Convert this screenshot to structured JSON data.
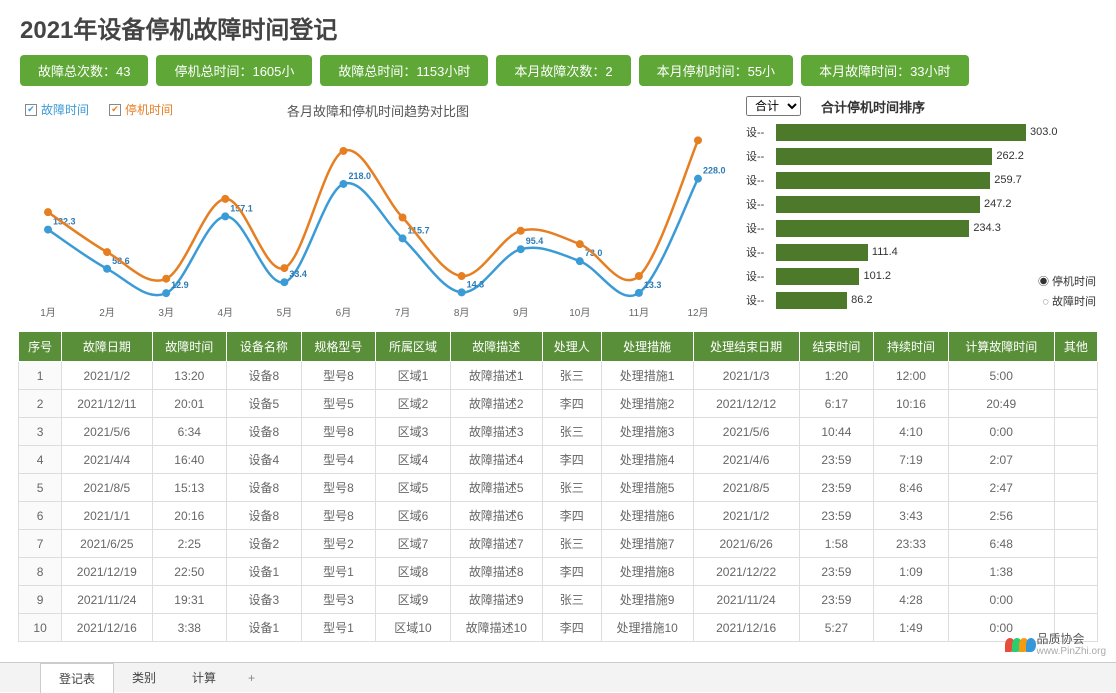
{
  "title": "2021年设备停机故障时间登记",
  "pills": [
    {
      "label": "故障总次数：43"
    },
    {
      "label": "停机总时间：1605小"
    },
    {
      "label": "故障总时间：1153小时"
    },
    {
      "label": "本月故障次数：2"
    },
    {
      "label": "本月停机时间：55小"
    },
    {
      "label": "本月故障时间：33小时"
    }
  ],
  "chart": {
    "title": "各月故障和停机时间趋势对比图",
    "legend": [
      {
        "label": "故障时间",
        "color": "#3b9bd6"
      },
      {
        "label": "停机时间",
        "color": "#e67e22"
      }
    ],
    "x_labels": [
      "1月",
      "2月",
      "3月",
      "4月",
      "5月",
      "6月",
      "7月",
      "8月",
      "9月",
      "10月",
      "11月",
      "12月"
    ],
    "series": [
      {
        "name": "故障时间",
        "color": "#3b9bd6",
        "values": [
          132.3,
          58.6,
          12.9,
          157.1,
          33.4,
          218.0,
          115.7,
          14.3,
          95.4,
          73.0,
          13.3,
          228.0
        ],
        "labels": [
          "132.3",
          "58.6",
          "12.9",
          "157.1",
          "33.4",
          "218.0",
          "115.7",
          "14.3",
          "95.4",
          "73.0",
          "13.3",
          "228.0"
        ]
      },
      {
        "name": "停机时间",
        "color": "#e67e22",
        "values": [
          165,
          90,
          40,
          190,
          60,
          280,
          155,
          45,
          130,
          105,
          45,
          300
        ]
      }
    ],
    "y_max": 310,
    "line_width": 2.5,
    "marker_size": 4,
    "label_fontsize": 9,
    "label_color": "#2e7bb5"
  },
  "ranking": {
    "select_value": "合计",
    "title": "合计停机时间排序",
    "max": 303,
    "bar_color": "#4d7a2a",
    "items": [
      {
        "label": "设--",
        "value": 303.0
      },
      {
        "label": "设--",
        "value": 262.2
      },
      {
        "label": "设--",
        "value": 259.7
      },
      {
        "label": "设--",
        "value": 247.2
      },
      {
        "label": "设--",
        "value": 234.3
      },
      {
        "label": "设--",
        "value": 111.4
      },
      {
        "label": "设--",
        "value": 101.2
      },
      {
        "label": "设--",
        "value": 86.2
      }
    ],
    "legend": [
      {
        "label": "停机时间",
        "sym": "◉"
      },
      {
        "label": "故障时间",
        "sym": "◌"
      }
    ]
  },
  "table": {
    "columns": [
      "序号",
      "故障日期",
      "故障时间",
      "设备名称",
      "规格型号",
      "所属区域",
      "故障描述",
      "处理人",
      "处理措施",
      "处理结束日期",
      "结束时间",
      "持续时间",
      "计算故障时间",
      "其他"
    ],
    "rows": [
      [
        "1",
        "2021/1/2",
        "13:20",
        "设备8",
        "型号8",
        "区域1",
        "故障描述1",
        "张三",
        "处理措施1",
        "2021/1/3",
        "1:20",
        "12:00",
        "5:00",
        ""
      ],
      [
        "2",
        "2021/12/11",
        "20:01",
        "设备5",
        "型号5",
        "区域2",
        "故障描述2",
        "李四",
        "处理措施2",
        "2021/12/12",
        "6:17",
        "10:16",
        "20:49",
        ""
      ],
      [
        "3",
        "2021/5/6",
        "6:34",
        "设备8",
        "型号8",
        "区域3",
        "故障描述3",
        "张三",
        "处理措施3",
        "2021/5/6",
        "10:44",
        "4:10",
        "0:00",
        ""
      ],
      [
        "4",
        "2021/4/4",
        "16:40",
        "设备4",
        "型号4",
        "区域4",
        "故障描述4",
        "李四",
        "处理措施4",
        "2021/4/6",
        "23:59",
        "7:19",
        "2:07",
        ""
      ],
      [
        "5",
        "2021/8/5",
        "15:13",
        "设备8",
        "型号8",
        "区域5",
        "故障描述5",
        "张三",
        "处理措施5",
        "2021/8/5",
        "23:59",
        "8:46",
        "2:47",
        ""
      ],
      [
        "6",
        "2021/1/1",
        "20:16",
        "设备8",
        "型号8",
        "区域6",
        "故障描述6",
        "李四",
        "处理措施6",
        "2021/1/2",
        "23:59",
        "3:43",
        "2:56",
        ""
      ],
      [
        "7",
        "2021/6/25",
        "2:25",
        "设备2",
        "型号2",
        "区域7",
        "故障描述7",
        "张三",
        "处理措施7",
        "2021/6/26",
        "1:58",
        "23:33",
        "6:48",
        ""
      ],
      [
        "8",
        "2021/12/19",
        "22:50",
        "设备1",
        "型号1",
        "区域8",
        "故障描述8",
        "李四",
        "处理措施8",
        "2021/12/22",
        "23:59",
        "1:09",
        "1:38",
        ""
      ],
      [
        "9",
        "2021/11/24",
        "19:31",
        "设备3",
        "型号3",
        "区域9",
        "故障描述9",
        "张三",
        "处理措施9",
        "2021/11/24",
        "23:59",
        "4:28",
        "0:00",
        ""
      ],
      [
        "10",
        "2021/12/16",
        "3:38",
        "设备1",
        "型号1",
        "区域10",
        "故障描述10",
        "李四",
        "处理措施10",
        "2021/12/16",
        "5:27",
        "1:49",
        "0:00",
        ""
      ]
    ]
  },
  "tabs": {
    "items": [
      "登记表",
      "类别",
      "计算"
    ],
    "active": 0
  },
  "watermark": {
    "text": "品质协会",
    "url": "www.PinZhi.org",
    "colors": [
      "#e74c3c",
      "#2ecc71",
      "#f39c12",
      "#3498db"
    ]
  }
}
